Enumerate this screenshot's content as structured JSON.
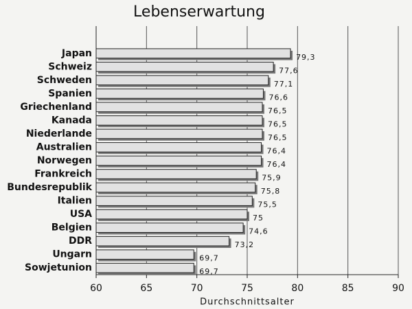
{
  "chart_data": {
    "type": "barh",
    "title": "Lebenserwartung",
    "x_label": "Durchschnittsalter",
    "categories": [
      "Japan",
      "Schweiz",
      "Schweden",
      "Spanien",
      "Griechenland",
      "Kanada",
      "Niederlande",
      "Australien",
      "Norwegen",
      "Frankreich",
      "Bundesrepublik",
      "Italien",
      "USA",
      "Belgien",
      "DDR",
      "Ungarn",
      "Sowjetunion"
    ],
    "values": [
      79.3,
      77.6,
      77.1,
      76.6,
      76.5,
      76.5,
      76.5,
      76.4,
      76.4,
      75.9,
      75.8,
      75.5,
      75,
      74.6,
      73.2,
      69.7,
      69.7
    ],
    "value_labels": [
      "79,3",
      "77,6",
      "77,1",
      "76,6",
      "76,5",
      "76,5",
      "76,5",
      "76,4",
      "76,4",
      "75,9",
      "75,8",
      "75,5",
      "75",
      "74,6",
      "73,2",
      "69,7",
      "69,7"
    ],
    "color": "#e2e2e2",
    "xlim": [
      60,
      90
    ],
    "xticks": [
      60,
      65,
      70,
      75,
      80,
      85,
      90
    ],
    "grid": true
  }
}
